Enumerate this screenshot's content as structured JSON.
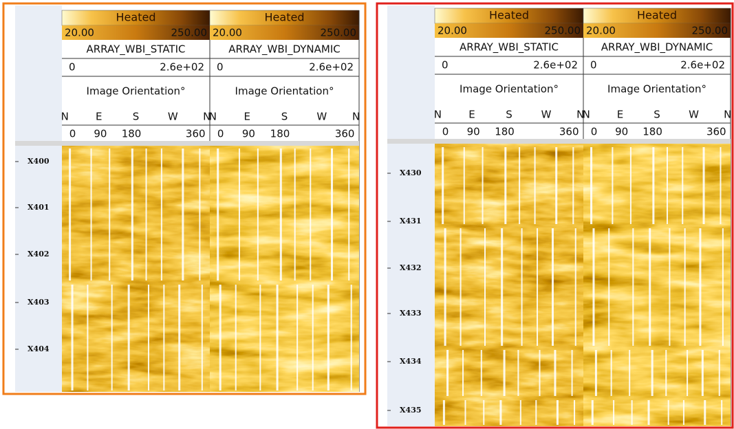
{
  "panels": [
    {
      "depth_labels": [
        "X400",
        "X401",
        "X402",
        "X403",
        "X404"
      ],
      "tracks": [
        {
          "palette": "Heated",
          "range_min": "20.00",
          "range_max": "250.00",
          "name": "ARRAY_WBI_STATIC",
          "scale_min": "0",
          "scale_max": "2.6e+02",
          "orientation_title": "Image Orientation°",
          "compass": [
            "N",
            "E",
            "S",
            "W",
            "N"
          ],
          "degrees": [
            "0",
            "90",
            "180",
            "360"
          ]
        },
        {
          "palette": "Heated",
          "range_min": "20.00",
          "range_max": "250.00",
          "name": "ARRAY_WBI_DYNAMIC",
          "scale_min": "0",
          "scale_max": "2.6e+02",
          "orientation_title": "Image Orientation°",
          "compass": [
            "N",
            "E",
            "S",
            "W",
            "N"
          ],
          "degrees": [
            "0",
            "90",
            "180",
            "360"
          ]
        }
      ]
    },
    {
      "depth_labels": [
        "X430",
        "X431",
        "X432",
        "X433",
        "X434",
        "X435"
      ],
      "tracks": [
        {
          "palette": "Heated",
          "range_min": "20.00",
          "range_max": "250.00",
          "name": "ARRAY_WBI_STATIC",
          "scale_min": "0",
          "scale_max": "2.6e+02",
          "orientation_title": "Image Orientation°",
          "compass": [
            "N",
            "E",
            "S",
            "W",
            "N"
          ],
          "degrees": [
            "0",
            "90",
            "180",
            "360"
          ]
        },
        {
          "palette": "Heated",
          "range_min": "20.00",
          "range_max": "250.00",
          "name": "ARRAY_WBI_DYNAMIC",
          "scale_min": "0",
          "scale_max": "2.6e+02",
          "orientation_title": "Image Orientation°",
          "compass": [
            "N",
            "E",
            "S",
            "W",
            "N"
          ],
          "degrees": [
            "0",
            "90",
            "180",
            "360"
          ]
        }
      ]
    }
  ]
}
